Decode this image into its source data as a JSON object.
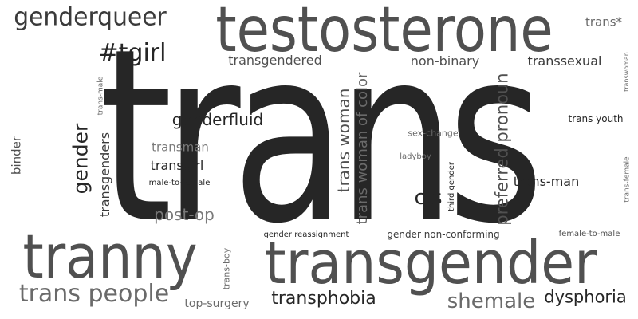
{
  "word_cloud": {
    "words": [
      {
        "text": "trans",
        "color": "#262626"
      },
      {
        "text": "testosterone",
        "color": "#505050"
      },
      {
        "text": "transgender",
        "color": "#505050"
      },
      {
        "text": "tranny",
        "color": "#505050"
      },
      {
        "text": "genderqueer",
        "color": "#3a3a3a"
      },
      {
        "text": "#tgirl",
        "color": "#262626"
      },
      {
        "text": "trans*",
        "color": "#6a6a6a"
      },
      {
        "text": "transgendered",
        "color": "#505050"
      },
      {
        "text": "non-binary",
        "color": "#505050"
      },
      {
        "text": "transsexual",
        "color": "#3a3a3a"
      },
      {
        "text": "transwoman",
        "color": "#6a6a6a"
      },
      {
        "text": "trans-male",
        "color": "#6a6a6a"
      },
      {
        "text": "genderfluid",
        "color": "#262626"
      },
      {
        "text": "trans woman",
        "color": "#505050"
      },
      {
        "text": "trans woman of color",
        "color": "#6a6a6a"
      },
      {
        "text": "preferred pronoun",
        "color": "#505050"
      },
      {
        "text": "trans youth",
        "color": "#262626"
      },
      {
        "text": "sex-change",
        "color": "#6a6a6a"
      },
      {
        "text": "binder",
        "color": "#505050"
      },
      {
        "text": "gender",
        "color": "#262626"
      },
      {
        "text": "transgenders",
        "color": "#3a3a3a"
      },
      {
        "text": "transman",
        "color": "#7a7a7a"
      },
      {
        "text": "transgirl",
        "color": "#262626"
      },
      {
        "text": "male-to-female",
        "color": "#262626"
      },
      {
        "text": "ladyboy",
        "color": "#6a6a6a"
      },
      {
        "text": "third gender",
        "color": "#262626"
      },
      {
        "text": "trans-man",
        "color": "#262626"
      },
      {
        "text": "trans-female",
        "color": "#6a6a6a"
      },
      {
        "text": "cis",
        "color": "#262626"
      },
      {
        "text": "post-op",
        "color": "#7a7a7a"
      },
      {
        "text": "gender reassignment",
        "color": "#262626"
      },
      {
        "text": "gender non-conforming",
        "color": "#3a3a3a"
      },
      {
        "text": "female-to-male",
        "color": "#505050"
      },
      {
        "text": "trans-boy",
        "color": "#6a6a6a"
      },
      {
        "text": "trans people",
        "color": "#6a6a6a"
      },
      {
        "text": "top-surgery",
        "color": "#6a6a6a"
      },
      {
        "text": "transphobia",
        "color": "#262626"
      },
      {
        "text": "shemale",
        "color": "#6a6a6a"
      },
      {
        "text": "dysphoria",
        "color": "#262626"
      }
    ]
  }
}
